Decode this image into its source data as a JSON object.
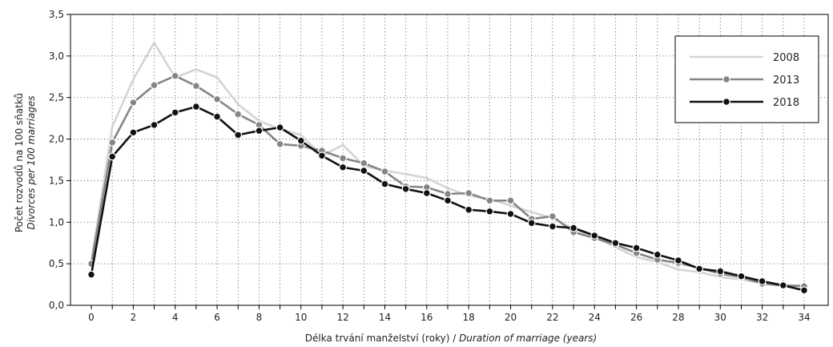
{
  "chart_data": {
    "type": "line",
    "xlabel": "Délka trvání manželství (roky) / ",
    "xlabel_italic": "Duration of marriage (years)",
    "ylabel": "Počet rozvodů na 100 sňatků",
    "ylabel_italic": "Divorces per 100 marriages",
    "xlim": [
      0,
      34
    ],
    "ylim": [
      0,
      3.5
    ],
    "x_ticks": [
      "0",
      "2",
      "4",
      "6",
      "8",
      "10",
      "12",
      "14",
      "16",
      "18",
      "20",
      "22",
      "24",
      "26",
      "28",
      "30",
      "32",
      "34"
    ],
    "y_ticks": [
      "0,0",
      "0,5",
      "1,0",
      "1,5",
      "2,0",
      "2,5",
      "3,0",
      "3,5"
    ],
    "grid": true,
    "legend_position": "top-right",
    "x": [
      0,
      1,
      2,
      3,
      4,
      5,
      6,
      7,
      8,
      9,
      10,
      11,
      12,
      13,
      14,
      15,
      16,
      17,
      18,
      19,
      20,
      21,
      22,
      23,
      24,
      25,
      26,
      27,
      28,
      29,
      30,
      31,
      32,
      33,
      34
    ],
    "series": [
      {
        "name": "2008",
        "color": "#d4d4d4",
        "markers": false,
        "values": [
          0.52,
          2.15,
          2.72,
          3.16,
          2.74,
          2.84,
          2.74,
          2.42,
          2.22,
          2.12,
          2.05,
          1.8,
          1.93,
          1.68,
          1.62,
          1.58,
          1.53,
          1.41,
          1.32,
          1.28,
          1.2,
          1.12,
          1.05,
          0.92,
          0.82,
          0.7,
          0.58,
          0.52,
          0.43,
          0.4,
          0.34,
          0.31,
          0.27,
          0.23,
          0.24
        ]
      },
      {
        "name": "2013",
        "color": "#858585",
        "markers": true,
        "values": [
          0.5,
          1.96,
          2.44,
          2.65,
          2.76,
          2.64,
          2.48,
          2.3,
          2.17,
          1.94,
          1.92,
          1.86,
          1.77,
          1.71,
          1.61,
          1.43,
          1.42,
          1.34,
          1.35,
          1.26,
          1.26,
          1.04,
          1.07,
          0.88,
          0.81,
          0.73,
          0.63,
          0.55,
          0.51,
          0.45,
          0.38,
          0.34,
          0.26,
          0.24,
          0.23
        ]
      },
      {
        "name": "2018",
        "color": "#111111",
        "markers": true,
        "values": [
          0.37,
          1.79,
          2.08,
          2.17,
          2.32,
          2.39,
          2.27,
          2.05,
          2.1,
          2.14,
          1.98,
          1.8,
          1.66,
          1.62,
          1.46,
          1.4,
          1.35,
          1.26,
          1.15,
          1.13,
          1.1,
          0.99,
          0.95,
          0.93,
          0.84,
          0.75,
          0.69,
          0.61,
          0.54,
          0.44,
          0.41,
          0.35,
          0.29,
          0.24,
          0.18
        ]
      }
    ]
  }
}
